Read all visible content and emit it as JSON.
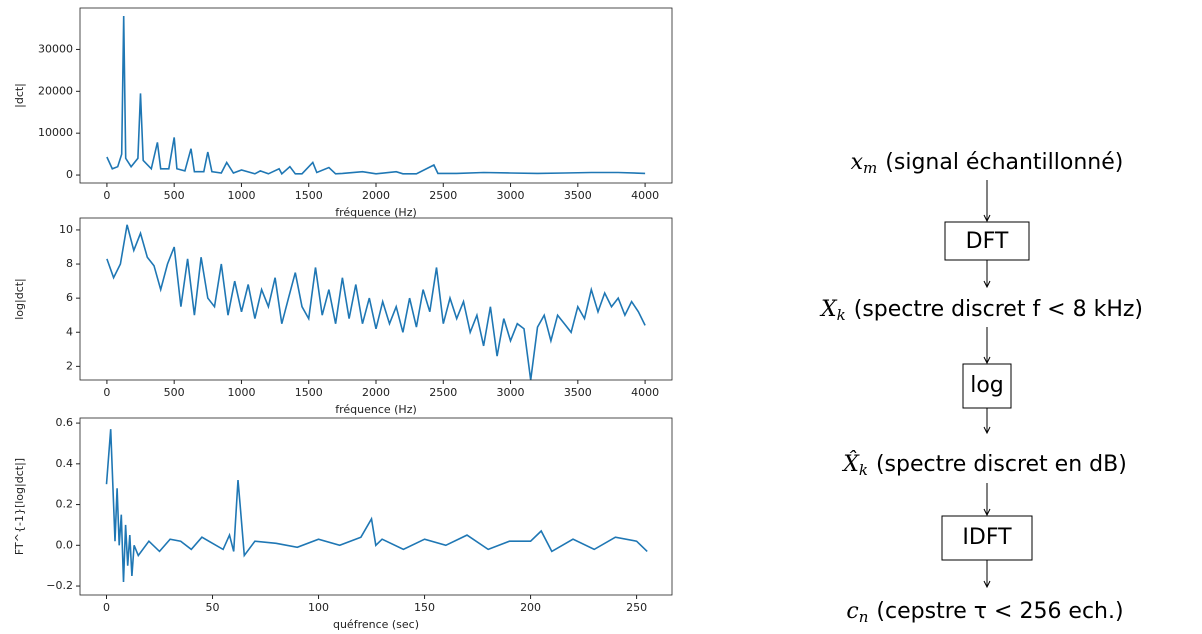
{
  "chart_data": [
    {
      "type": "line",
      "xlabel": "fréquence (Hz)",
      "ylabel": "|dct|",
      "color": "#1f77b4",
      "xlim": [
        -200,
        4200
      ],
      "ylim": [
        -1900,
        39900
      ],
      "xticks": [
        0,
        500,
        1000,
        1500,
        2000,
        2500,
        3000,
        3500,
        4000
      ],
      "yticks": [
        0,
        10000,
        20000,
        30000
      ],
      "x": [
        0,
        40,
        80,
        110,
        125,
        140,
        180,
        230,
        250,
        270,
        330,
        375,
        400,
        460,
        500,
        520,
        580,
        625,
        650,
        720,
        750,
        780,
        850,
        890,
        940,
        1000,
        1100,
        1140,
        1200,
        1280,
        1300,
        1360,
        1400,
        1450,
        1530,
        1560,
        1650,
        1700,
        1750,
        1900,
        2000,
        2150,
        2200,
        2300,
        2430,
        2460,
        2600,
        2800,
        3000,
        3200,
        3400,
        3600,
        3800,
        4000
      ],
      "values": [
        4300,
        1500,
        2000,
        5000,
        38000,
        4000,
        2000,
        4000,
        19500,
        3500,
        1500,
        7800,
        1500,
        1500,
        9000,
        1500,
        1000,
        6300,
        800,
        800,
        5500,
        800,
        500,
        3000,
        500,
        1200,
        300,
        1000,
        300,
        1500,
        300,
        2000,
        300,
        300,
        3000,
        600,
        1800,
        300,
        400,
        800,
        300,
        800,
        300,
        300,
        2400,
        400,
        400,
        600,
        500,
        400,
        500,
        600,
        600,
        400
      ]
    },
    {
      "type": "line",
      "xlabel": "fréquence (Hz)",
      "ylabel": "log|dct|",
      "color": "#1f77b4",
      "xlim": [
        -200,
        4200
      ],
      "ylim": [
        1.2,
        10.7
      ],
      "xticks": [
        0,
        500,
        1000,
        1500,
        2000,
        2500,
        3000,
        3500,
        4000
      ],
      "yticks": [
        2,
        4,
        6,
        8,
        10
      ],
      "x": [
        0,
        50,
        100,
        150,
        200,
        250,
        300,
        350,
        400,
        450,
        500,
        550,
        600,
        650,
        700,
        750,
        800,
        850,
        900,
        950,
        1000,
        1050,
        1100,
        1150,
        1200,
        1250,
        1300,
        1350,
        1400,
        1450,
        1500,
        1550,
        1600,
        1650,
        1700,
        1750,
        1800,
        1850,
        1900,
        1950,
        2000,
        2050,
        2100,
        2150,
        2200,
        2250,
        2300,
        2350,
        2400,
        2450,
        2500,
        2550,
        2600,
        2650,
        2700,
        2750,
        2800,
        2850,
        2900,
        2950,
        3000,
        3050,
        3100,
        3150,
        3200,
        3250,
        3300,
        3350,
        3400,
        3450,
        3500,
        3550,
        3600,
        3650,
        3700,
        3750,
        3800,
        3850,
        3900,
        3950,
        4000
      ],
      "values": [
        8.3,
        7.2,
        8.0,
        10.3,
        8.8,
        9.8,
        8.4,
        7.9,
        6.5,
        8.0,
        9.0,
        5.5,
        8.3,
        5.0,
        8.4,
        6.0,
        5.5,
        8.0,
        5.0,
        7.0,
        5.2,
        6.8,
        4.8,
        6.5,
        5.5,
        7.2,
        4.5,
        6.0,
        7.5,
        5.5,
        4.8,
        7.8,
        5.0,
        6.5,
        4.5,
        7.2,
        4.8,
        6.8,
        4.5,
        6.0,
        4.2,
        5.8,
        4.5,
        5.5,
        4.0,
        6.0,
        4.3,
        6.5,
        5.2,
        7.8,
        4.5,
        6.0,
        4.8,
        5.8,
        4.0,
        5.0,
        3.2,
        5.5,
        2.6,
        4.8,
        3.5,
        4.5,
        4.2,
        1.2,
        4.3,
        5.0,
        3.5,
        5.0,
        4.5,
        4.0,
        5.5,
        4.8,
        6.5,
        5.2,
        6.3,
        5.5,
        6.0,
        5.0,
        5.8,
        5.2,
        4.4
      ]
    },
    {
      "type": "line",
      "xlabel": "quéfrence (sec)",
      "ylabel": "FT^{-1}[log|dct|]",
      "color": "#1f77b4",
      "xlim": [
        -12.5,
        266.7
      ],
      "ylim": [
        -0.244,
        0.625
      ],
      "xticks": [
        0,
        50,
        100,
        150,
        200,
        250
      ],
      "yticks": [
        {
          "value": -0.2,
          "label": "−0.2"
        },
        {
          "value": 0,
          "label": "0.0"
        },
        0.2,
        0.4,
        0.6
      ],
      "x": [
        0,
        2,
        4,
        5,
        6,
        7,
        8,
        9,
        10,
        11,
        12,
        13,
        15,
        20,
        25,
        30,
        35,
        40,
        45,
        50,
        55,
        58,
        60,
        62,
        63,
        65,
        70,
        80,
        90,
        100,
        110,
        120,
        125,
        127,
        130,
        140,
        150,
        160,
        170,
        180,
        190,
        200,
        205,
        210,
        220,
        230,
        240,
        250,
        255
      ],
      "values": [
        0.3,
        0.57,
        0.02,
        0.28,
        0.0,
        0.15,
        -0.18,
        0.1,
        -0.1,
        0.05,
        -0.15,
        0.0,
        -0.05,
        0.02,
        -0.03,
        0.03,
        0.02,
        -0.02,
        0.04,
        0.01,
        -0.02,
        0.05,
        -0.03,
        0.32,
        0.2,
        -0.05,
        0.02,
        0.01,
        -0.01,
        0.03,
        0.0,
        0.04,
        0.13,
        0.0,
        0.03,
        -0.02,
        0.03,
        0.0,
        0.05,
        -0.02,
        0.02,
        0.02,
        0.07,
        -0.03,
        0.03,
        -0.02,
        0.04,
        0.02,
        -0.03
      ]
    }
  ],
  "diagram": {
    "nodes": [
      {
        "symbol": "x",
        "subscript": "m",
        "label": "(signal échantillonné)"
      },
      {
        "symbol": "X",
        "subscript": "k",
        "label": "(spectre discret f < 8 kHz)"
      },
      {
        "symbol": "X̂",
        "subscript": "k",
        "label": "(spectre discret en dB)"
      },
      {
        "symbol": "c",
        "subscript": "n",
        "label": "(cepstre τ < 256 ech.)"
      }
    ],
    "operations": [
      "DFT",
      "log",
      "IDFT"
    ]
  }
}
